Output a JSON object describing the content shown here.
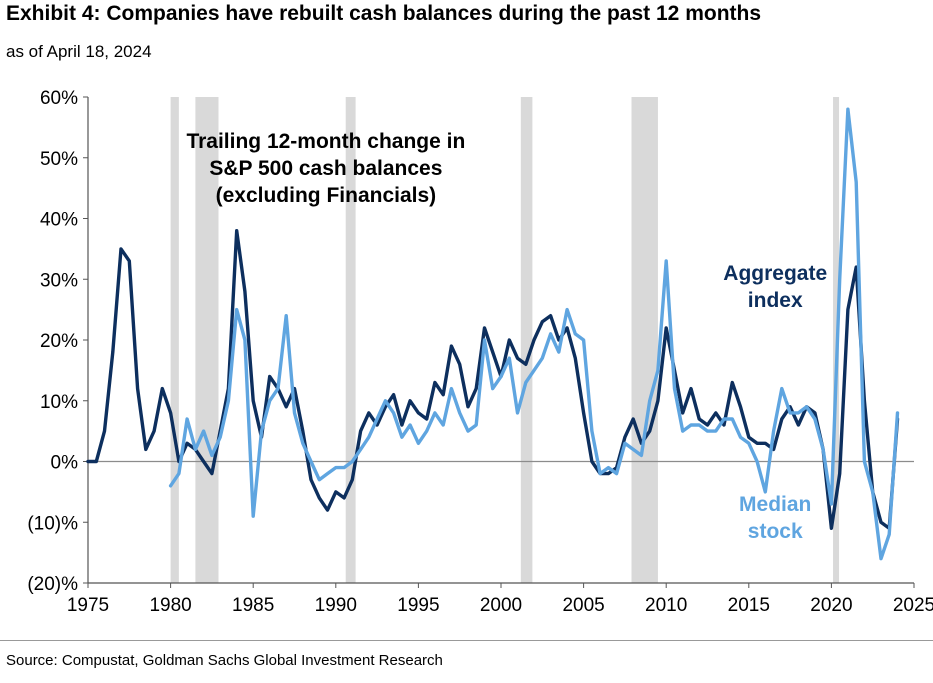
{
  "header": {
    "title": "Exhibit 4: Companies have rebuilt cash balances during the past 12 months",
    "subtitle": "as of April 18, 2024"
  },
  "footer": {
    "source": "Source: Compustat, Goldman Sachs Global Investment Research"
  },
  "colors": {
    "aggregate": "#0d2f5e",
    "median": "#5fa5e0",
    "recession": "#d9d9d9"
  },
  "chart_data": {
    "type": "line",
    "title": "Trailing 12-month change in S&P 500 cash balances (excluding Financials)",
    "title_lines": [
      "Trailing 12-month change in",
      "S&P 500 cash balances",
      "(excluding Financials)"
    ],
    "xlim": [
      1975,
      2025
    ],
    "ylim": [
      -20,
      60
    ],
    "x_ticks": [
      1975,
      1980,
      1985,
      1990,
      1995,
      2000,
      2005,
      2010,
      2015,
      2020,
      2025
    ],
    "x_tick_labels": [
      "1975",
      "1980",
      "1985",
      "1990",
      "1995",
      "2000",
      "2005",
      "2010",
      "2015",
      "2020",
      "2025"
    ],
    "y_ticks": [
      -20,
      -10,
      0,
      10,
      20,
      30,
      40,
      50,
      60
    ],
    "y_tick_labels": [
      "(20)%",
      "(10)%",
      "0%",
      "10%",
      "20%",
      "30%",
      "40%",
      "50%",
      "60%"
    ],
    "recessions": [
      [
        1980.0,
        1980.5
      ],
      [
        1981.5,
        1982.9
      ],
      [
        1990.6,
        1991.2
      ],
      [
        2001.2,
        2001.9
      ],
      [
        2007.9,
        2009.5
      ],
      [
        2020.1,
        2020.4
      ]
    ],
    "series": [
      {
        "name": "Aggregate index",
        "label_lines": [
          "Aggregate",
          "index"
        ],
        "x": [
          1975.0,
          1975.5,
          1976.0,
          1976.5,
          1977.0,
          1977.5,
          1978.0,
          1978.5,
          1979.0,
          1979.5,
          1980.0,
          1980.5,
          1981.0,
          1981.5,
          1982.0,
          1982.5,
          1983.0,
          1983.5,
          1984.0,
          1984.5,
          1985.0,
          1985.5,
          1986.0,
          1986.5,
          1987.0,
          1987.5,
          1988.0,
          1988.5,
          1989.0,
          1989.5,
          1990.0,
          1990.5,
          1991.0,
          1991.5,
          1992.0,
          1992.5,
          1993.0,
          1993.5,
          1994.0,
          1994.5,
          1995.0,
          1995.5,
          1996.0,
          1996.5,
          1997.0,
          1997.5,
          1998.0,
          1998.5,
          1999.0,
          1999.5,
          2000.0,
          2000.5,
          2001.0,
          2001.5,
          2002.0,
          2002.5,
          2003.0,
          2003.5,
          2004.0,
          2004.5,
          2005.0,
          2005.5,
          2006.0,
          2006.5,
          2007.0,
          2007.5,
          2008.0,
          2008.5,
          2009.0,
          2009.5,
          2010.0,
          2010.5,
          2011.0,
          2011.5,
          2012.0,
          2012.5,
          2013.0,
          2013.5,
          2014.0,
          2014.5,
          2015.0,
          2015.5,
          2016.0,
          2016.5,
          2017.0,
          2017.5,
          2018.0,
          2018.5,
          2019.0,
          2019.5,
          2020.0,
          2020.5,
          2021.0,
          2021.5,
          2022.0,
          2022.5,
          2023.0,
          2023.5,
          2024.0
        ],
        "values": [
          0,
          0,
          5,
          18,
          35,
          33,
          12,
          2,
          5,
          12,
          8,
          0,
          3,
          2,
          0,
          -2,
          5,
          12,
          38,
          28,
          10,
          4,
          14,
          12,
          9,
          12,
          5,
          -3,
          -6,
          -8,
          -5,
          -6,
          -3,
          5,
          8,
          6,
          9,
          11,
          6,
          10,
          8,
          7,
          13,
          11,
          19,
          16,
          9,
          12,
          22,
          18,
          14,
          20,
          17,
          16,
          20,
          23,
          24,
          20,
          22,
          17,
          8,
          0,
          -2,
          -2,
          -1,
          4,
          7,
          3,
          5,
          10,
          22,
          15,
          8,
          12,
          7,
          6,
          8,
          6,
          13,
          9,
          4,
          3,
          3,
          2,
          7,
          9,
          6,
          9,
          8,
          2,
          -11,
          -2,
          25,
          32,
          10,
          -5,
          -10,
          -11,
          7
        ]
      },
      {
        "name": "Median stock",
        "label_lines": [
          "Median",
          "stock"
        ],
        "x": [
          1980.0,
          1980.5,
          1981.0,
          1981.5,
          1982.0,
          1982.5,
          1983.0,
          1983.5,
          1984.0,
          1984.5,
          1985.0,
          1985.5,
          1986.0,
          1986.5,
          1987.0,
          1987.5,
          1988.0,
          1988.5,
          1989.0,
          1989.5,
          1990.0,
          1990.5,
          1991.0,
          1991.5,
          1992.0,
          1992.5,
          1993.0,
          1993.5,
          1994.0,
          1994.5,
          1995.0,
          1995.5,
          1996.0,
          1996.5,
          1997.0,
          1997.5,
          1998.0,
          1998.5,
          1999.0,
          1999.5,
          2000.0,
          2000.5,
          2001.0,
          2001.5,
          2002.0,
          2002.5,
          2003.0,
          2003.5,
          2004.0,
          2004.5,
          2005.0,
          2005.5,
          2006.0,
          2006.5,
          2007.0,
          2007.5,
          2008.0,
          2008.5,
          2009.0,
          2009.5,
          2010.0,
          2010.5,
          2011.0,
          2011.5,
          2012.0,
          2012.5,
          2013.0,
          2013.5,
          2014.0,
          2014.5,
          2015.0,
          2015.5,
          2016.0,
          2016.5,
          2017.0,
          2017.5,
          2018.0,
          2018.5,
          2019.0,
          2019.5,
          2020.0,
          2020.5,
          2021.0,
          2021.5,
          2022.0,
          2022.5,
          2023.0,
          2023.5,
          2024.0
        ],
        "values": [
          -4,
          -2,
          7,
          2,
          5,
          1,
          4,
          10,
          25,
          20,
          -9,
          5,
          10,
          12,
          24,
          8,
          3,
          0,
          -3,
          -2,
          -1,
          -1,
          0,
          2,
          4,
          7,
          10,
          8,
          4,
          6,
          3,
          5,
          8,
          6,
          12,
          8,
          5,
          6,
          20,
          12,
          14,
          17,
          8,
          13,
          15,
          17,
          21,
          18,
          25,
          21,
          20,
          5,
          -2,
          -1,
          -2,
          3,
          2,
          1,
          10,
          15,
          33,
          12,
          5,
          6,
          6,
          5,
          5,
          7,
          7,
          4,
          3,
          0,
          -5,
          5,
          12,
          8,
          8,
          9,
          7,
          2,
          -7,
          30,
          58,
          46,
          0,
          -5,
          -16,
          -12,
          8
        ]
      }
    ]
  }
}
